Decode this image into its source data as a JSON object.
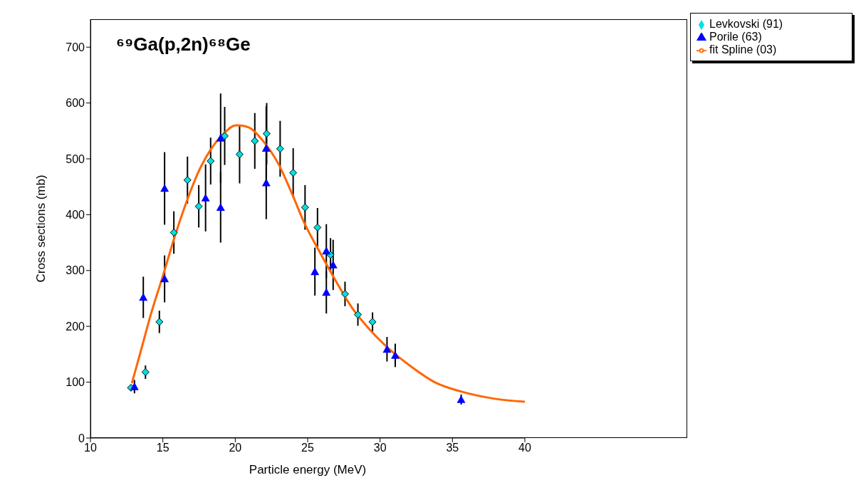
{
  "chart_data": {
    "type": "scatter",
    "title": "⁶⁹Ga(p,2n)⁶⁸Ge",
    "xlabel": "Particle energy (MeV)",
    "ylabel": "Cross sections (mb)",
    "xlim": [
      10,
      40
    ],
    "xticks": [
      10,
      15,
      20,
      25,
      30,
      35,
      40
    ],
    "ylim": [
      0,
      750
    ],
    "yticks": [
      0,
      100,
      200,
      300,
      400,
      500,
      600,
      700
    ],
    "legend": "top right",
    "series": [
      {
        "name": "Levkovski (91)",
        "marker": "diamond",
        "color": "#00e0e0",
        "x": [
          12.8,
          13.8,
          14.76,
          15.76,
          16.7,
          17.48,
          18.3,
          19.27,
          20.3,
          21.35,
          22.17,
          23.1,
          24.0,
          24.82,
          25.68,
          26.58,
          27.58,
          28.47,
          29.48
        ],
        "values": [
          90,
          118,
          208,
          368,
          462,
          415,
          496,
          541,
          508,
          532,
          545,
          518,
          475,
          413,
          377,
          328,
          258,
          221,
          208
        ],
        "errors": [
          null,
          12,
          20,
          38,
          42,
          38,
          42,
          52,
          52,
          50,
          55,
          50,
          44,
          40,
          35,
          30,
          22,
          20,
          17
        ]
      },
      {
        "name": "Porile (63)",
        "marker": "triangle",
        "color": "#0000ff",
        "x": [
          13.04,
          13.65,
          15.12,
          15.12,
          17.95,
          18.99,
          18.99,
          22.14,
          22.14,
          25.5,
          26.29,
          26.29,
          26.76,
          30.48,
          31.05,
          35.6
        ],
        "values": [
          92,
          252,
          447,
          285,
          430,
          413,
          537,
          519,
          457,
          298,
          335,
          261,
          310,
          159,
          148,
          69
        ],
        "errors": [
          12,
          37,
          65,
          42,
          60,
          63,
          80,
          75,
          65,
          43,
          48,
          38,
          45,
          22,
          21,
          9
        ]
      },
      {
        "name": "fit Spline (03)",
        "type": "line",
        "marker": "none",
        "line_style": "solid",
        "color": "#ff6600",
        "x": [
          12.86,
          13.47,
          14.19,
          15.0,
          15.8,
          16.62,
          17.63,
          18.34,
          19.2,
          20.03,
          20.24,
          20.96,
          21.92,
          23.0,
          23.96,
          24.79,
          25.75,
          26.93,
          28.1,
          29.33,
          30.27,
          32.2,
          33.85,
          35.63,
          38.0,
          40.0
        ],
        "values": [
          98,
          155,
          223,
          290,
          359,
          422,
          486,
          518,
          545,
          560,
          560,
          556,
          532,
          490,
          435,
          384,
          337,
          282,
          232,
          193,
          168,
          127,
          99,
          83,
          70,
          65
        ]
      }
    ]
  }
}
